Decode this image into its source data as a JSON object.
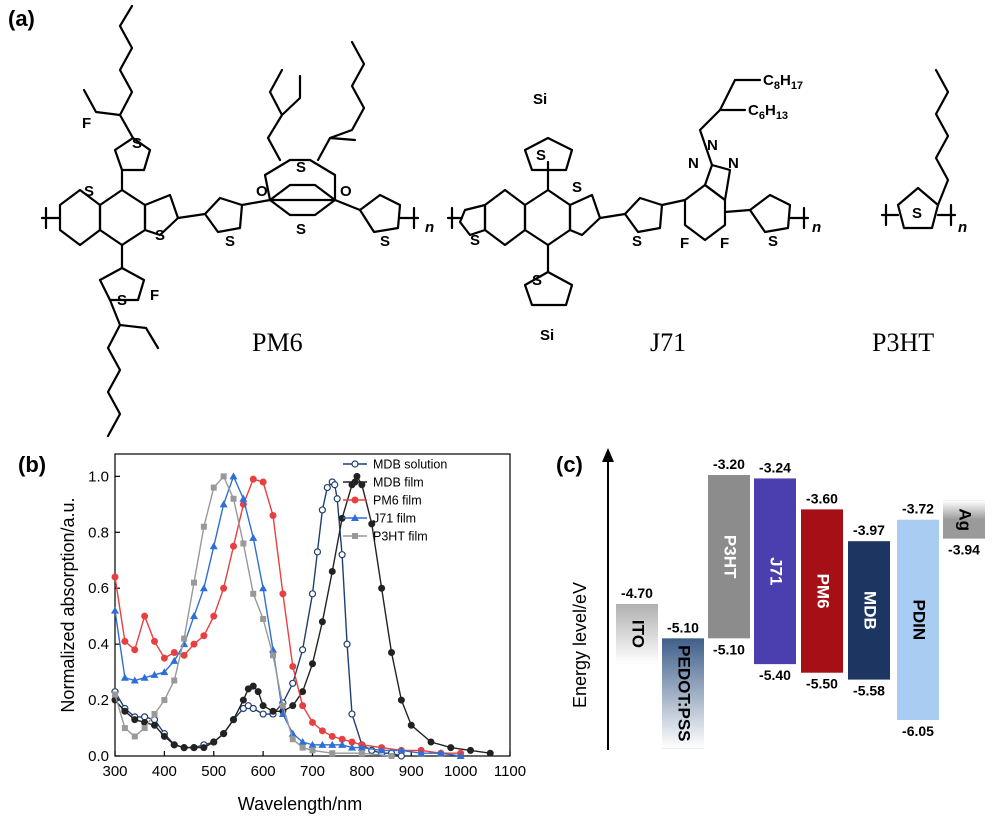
{
  "panel_labels": {
    "a": "(a)",
    "b": "(b)",
    "c": "(c)"
  },
  "molecules": {
    "pm6": {
      "name": "PM6",
      "atoms": {
        "s": "S",
        "f": "F",
        "o": "O"
      },
      "repeat": "n"
    },
    "j71": {
      "name": "J71",
      "atoms": {
        "s": "S",
        "si": "Si",
        "n": "N",
        "f": "F"
      },
      "side1": "C",
      "side1_sub": "8",
      "side1_h": "H",
      "side1_hsub": "17",
      "side2": "C",
      "side2_sub": "6",
      "side2_h": "H",
      "side2_hsub": "13",
      "repeat": "n"
    },
    "p3ht": {
      "name": "P3HT",
      "atoms": {
        "s": "S"
      },
      "repeat": "n"
    }
  },
  "chart_data": [
    {
      "type": "line",
      "xlabel": "Wavelength/nm",
      "ylabel": "Normalized absorption/a.u.",
      "xlim": [
        300,
        1100
      ],
      "ylim": [
        0,
        1.08
      ],
      "xticks": [
        "300",
        "400",
        "500",
        "600",
        "700",
        "800",
        "900",
        "1000",
        "1100"
      ],
      "yticks": [
        "0.0",
        "0.2",
        "0.4",
        "0.6",
        "0.8",
        "1.0"
      ],
      "legend_position": "top-right",
      "series": [
        {
          "name": "MDB solution",
          "color": "#1f3f6e",
          "marker": "open-circle",
          "x": [
            300,
            320,
            340,
            360,
            380,
            400,
            420,
            440,
            460,
            480,
            500,
            520,
            540,
            560,
            570,
            580,
            600,
            620,
            640,
            660,
            680,
            700,
            710,
            720,
            730,
            740,
            745,
            750,
            760,
            770,
            780,
            800,
            820,
            840,
            860,
            880
          ],
          "y": [
            0.23,
            0.17,
            0.14,
            0.14,
            0.13,
            0.08,
            0.04,
            0.03,
            0.03,
            0.04,
            0.05,
            0.08,
            0.13,
            0.17,
            0.18,
            0.17,
            0.15,
            0.15,
            0.19,
            0.26,
            0.38,
            0.58,
            0.73,
            0.88,
            0.96,
            0.98,
            0.97,
            0.92,
            0.72,
            0.4,
            0.15,
            0.04,
            0.02,
            0.01,
            0.01,
            0.0
          ]
        },
        {
          "name": "MDB film",
          "color": "#222222",
          "marker": "filled-circle",
          "x": [
            300,
            320,
            340,
            360,
            380,
            400,
            420,
            440,
            460,
            480,
            500,
            520,
            540,
            560,
            570,
            580,
            590,
            600,
            620,
            640,
            660,
            680,
            700,
            720,
            740,
            760,
            780,
            790,
            800,
            820,
            840,
            860,
            880,
            900,
            940,
            980,
            1020,
            1060
          ],
          "y": [
            0.2,
            0.16,
            0.13,
            0.12,
            0.11,
            0.07,
            0.04,
            0.03,
            0.03,
            0.03,
            0.05,
            0.08,
            0.13,
            0.2,
            0.24,
            0.25,
            0.23,
            0.18,
            0.16,
            0.16,
            0.18,
            0.23,
            0.33,
            0.48,
            0.66,
            0.85,
            0.97,
            1.0,
            0.97,
            0.83,
            0.6,
            0.37,
            0.2,
            0.11,
            0.05,
            0.03,
            0.02,
            0.01
          ]
        },
        {
          "name": "PM6 film",
          "color": "#e84040",
          "marker": "filled-circle",
          "x": [
            300,
            320,
            340,
            360,
            380,
            400,
            420,
            440,
            460,
            480,
            500,
            520,
            540,
            560,
            580,
            600,
            620,
            640,
            660,
            680,
            700,
            720,
            740,
            760,
            780,
            800,
            840,
            880,
            920,
            960,
            1000
          ],
          "y": [
            0.64,
            0.41,
            0.38,
            0.5,
            0.41,
            0.35,
            0.37,
            0.36,
            0.4,
            0.43,
            0.5,
            0.6,
            0.75,
            0.9,
            0.99,
            0.98,
            0.86,
            0.58,
            0.32,
            0.18,
            0.12,
            0.09,
            0.07,
            0.06,
            0.05,
            0.04,
            0.03,
            0.02,
            0.02,
            0.01,
            0.01
          ]
        },
        {
          "name": "J71 film",
          "color": "#2f6fd4",
          "marker": "filled-triangle",
          "x": [
            300,
            320,
            340,
            360,
            380,
            400,
            420,
            440,
            460,
            480,
            500,
            520,
            540,
            560,
            580,
            600,
            620,
            640,
            660,
            680,
            700,
            720,
            740,
            760,
            780,
            800,
            840,
            880,
            920,
            960,
            1000
          ],
          "y": [
            0.52,
            0.28,
            0.27,
            0.28,
            0.29,
            0.3,
            0.34,
            0.4,
            0.5,
            0.6,
            0.75,
            0.9,
            1.0,
            0.92,
            0.78,
            0.6,
            0.38,
            0.15,
            0.08,
            0.05,
            0.04,
            0.04,
            0.04,
            0.04,
            0.03,
            0.03,
            0.02,
            0.02,
            0.01,
            0.01,
            0.0
          ]
        },
        {
          "name": "P3HT film",
          "color": "#999999",
          "marker": "filled-square",
          "x": [
            300,
            320,
            340,
            360,
            380,
            400,
            420,
            440,
            460,
            480,
            500,
            520,
            540,
            560,
            580,
            600,
            620,
            640,
            660,
            680,
            700,
            740,
            800,
            860
          ],
          "y": [
            0.22,
            0.1,
            0.07,
            0.1,
            0.15,
            0.2,
            0.27,
            0.42,
            0.62,
            0.82,
            0.96,
            1.0,
            0.92,
            0.76,
            0.58,
            0.49,
            0.36,
            0.18,
            0.06,
            0.03,
            0.02,
            0.01,
            0.01,
            0.0
          ]
        }
      ]
    },
    {
      "type": "bar",
      "ylabel": "Energy level/eV",
      "materials": [
        {
          "name": "ITO",
          "top": -4.7,
          "bottom": null,
          "top_label": "-4.70",
          "bottom_label": "",
          "color": "#b0b0b0",
          "text_color": "#000000",
          "gradient": true
        },
        {
          "name": "PEDOT:PSS",
          "top": -5.1,
          "bottom": null,
          "top_label": "-5.10",
          "bottom_label": "",
          "color": "#3f5f8a",
          "text_color": "#000000",
          "gradient": true
        },
        {
          "name": "P3HT",
          "top": -3.2,
          "bottom": -5.1,
          "top_label": "-3.20",
          "bottom_label": "-5.10",
          "color": "#8c8c8c",
          "text_color": "#ffffff",
          "gradient": false
        },
        {
          "name": "J71",
          "top": -3.24,
          "bottom": -5.4,
          "top_label": "-3.24",
          "bottom_label": "-5.40",
          "color": "#4b3fb0",
          "text_color": "#ffffff",
          "gradient": false
        },
        {
          "name": "PM6",
          "top": -3.6,
          "bottom": -5.5,
          "top_label": "-3.60",
          "bottom_label": "-5.50",
          "color": "#a50f15",
          "text_color": "#ffffff",
          "gradient": false
        },
        {
          "name": "MDB",
          "top": -3.97,
          "bottom": -5.58,
          "top_label": "-3.97",
          "bottom_label": "-5.58",
          "color": "#1c3561",
          "text_color": "#ffffff",
          "gradient": false
        },
        {
          "name": "PDIN",
          "top": -3.72,
          "bottom": -6.05,
          "top_label": "-3.72",
          "bottom_label": "-6.05",
          "color": "#a9cdf2",
          "text_color": "#000000",
          "gradient": false
        },
        {
          "name": "Ag",
          "top": -3.94,
          "bottom": null,
          "top_label": "",
          "bottom_label": "-3.94",
          "color": "#9a9a9a",
          "text_color": "#000000",
          "gradient": true
        }
      ]
    }
  ]
}
